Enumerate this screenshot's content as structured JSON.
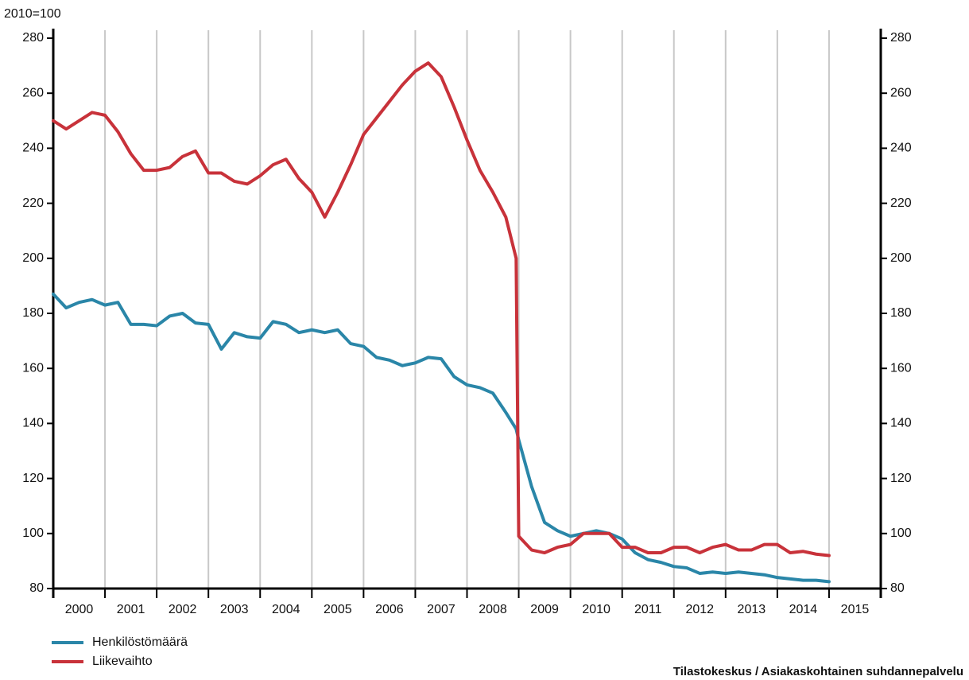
{
  "chart_data": {
    "type": "line",
    "y_label": "2010=100",
    "source": "Tilastokeskus / Asiakaskohtainen suhdannepalvelu",
    "xlim": [
      2000,
      2016
    ],
    "xticks": [
      2000,
      2001,
      2002,
      2003,
      2004,
      2005,
      2006,
      2007,
      2008,
      2009,
      2010,
      2011,
      2012,
      2013,
      2014,
      2015
    ],
    "ylim": [
      80,
      280
    ],
    "yticks": [
      80,
      100,
      120,
      140,
      160,
      180,
      200,
      220,
      240,
      260,
      280
    ],
    "y2lim": [
      80,
      280
    ],
    "y2ticks": [
      80,
      100,
      120,
      140,
      160,
      180,
      200,
      220,
      240,
      260,
      280
    ],
    "grid": true,
    "legend": "bottom-left",
    "x": [
      2000,
      2000.25,
      2000.5,
      2000.75,
      2001,
      2001.25,
      2001.5,
      2001.75,
      2002,
      2002.25,
      2002.5,
      2002.75,
      2003,
      2003.25,
      2003.5,
      2003.75,
      2004,
      2004.25,
      2004.5,
      2004.75,
      2005,
      2005.25,
      2005.5,
      2005.75,
      2006,
      2006.25,
      2006.5,
      2006.75,
      2007,
      2007.25,
      2007.5,
      2007.75,
      2008,
      2008.25,
      2008.5,
      2008.75,
      2008.95,
      2009,
      2009.25,
      2009.5,
      2009.75,
      2010,
      2010.25,
      2010.5,
      2010.75,
      2011,
      2011.25,
      2011.5,
      2011.75,
      2012,
      2012.25,
      2012.5,
      2012.75,
      2013,
      2013.25,
      2013.5,
      2013.75,
      2014,
      2014.25,
      2014.5,
      2014.75,
      2015
    ],
    "series": [
      {
        "name": "Henkilöstömäärä",
        "color": "#2a86a8",
        "values": [
          187,
          182,
          184,
          185,
          183,
          184,
          176,
          176,
          175.5,
          179,
          180,
          176.5,
          176,
          167,
          173,
          171.5,
          171,
          177,
          176,
          173,
          174,
          173,
          174,
          169,
          168,
          164,
          163,
          161,
          162,
          164,
          163.5,
          157,
          154,
          153,
          151,
          144,
          138,
          134,
          117,
          104,
          101,
          99,
          100,
          101,
          100,
          98,
          93,
          90.5,
          89.5,
          88,
          87.5,
          85.5,
          86,
          85.5,
          86,
          85.5,
          85,
          84,
          83.5,
          83,
          83,
          82.5
        ]
      },
      {
        "name": "Liikevaihto",
        "color": "#c8323a",
        "values": [
          250,
          247,
          250,
          253,
          252,
          246,
          238,
          232,
          232,
          233,
          237,
          239,
          231,
          231,
          228,
          227,
          230,
          234,
          236,
          229,
          224,
          215,
          224,
          234,
          245,
          251,
          257,
          263,
          268,
          271,
          266,
          255,
          243,
          232,
          224,
          215,
          200,
          99,
          94,
          93,
          95,
          96,
          100,
          100,
          100,
          95,
          95,
          93,
          93,
          95,
          95,
          93,
          95,
          96,
          94,
          94,
          96,
          96,
          93,
          93.5,
          92.5,
          92
        ]
      }
    ]
  }
}
